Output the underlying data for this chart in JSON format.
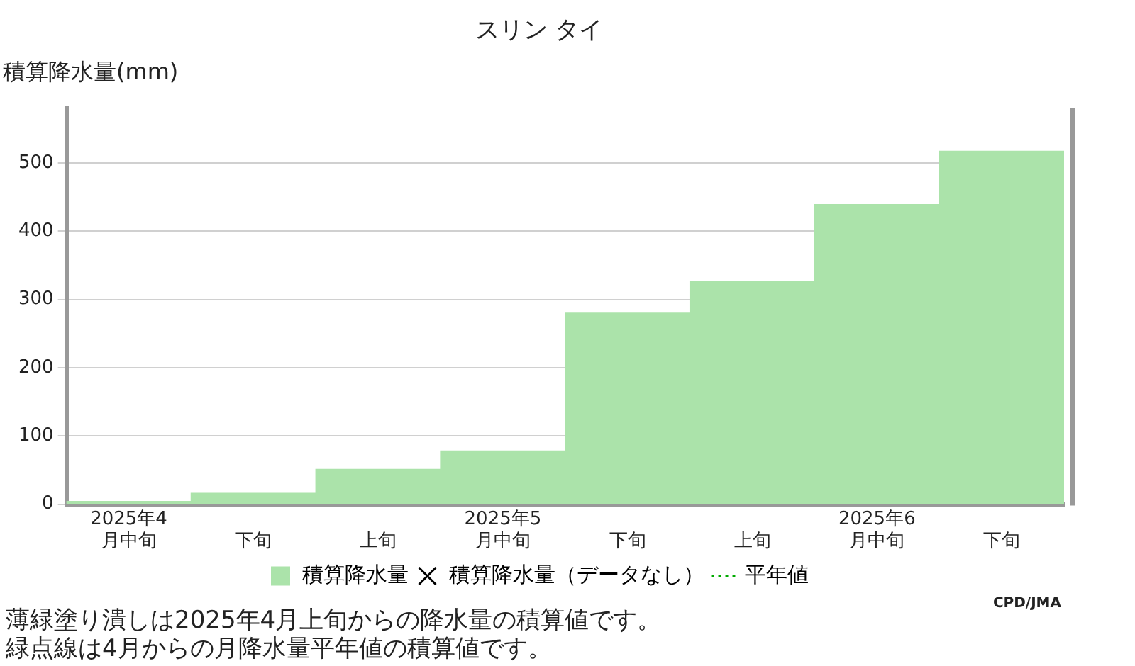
{
  "chart_data": {
    "type": "bar",
    "title": "スリン タイ",
    "ylabel": "積算降水量(mm)",
    "categories": [
      "2025年4月中旬",
      "下旬",
      "上旬",
      "2025年5月中旬",
      "下旬",
      "上旬",
      "2025年6月中旬",
      "下旬"
    ],
    "series": [
      {
        "name": "積算降水量",
        "color": "#abe3aa",
        "values": [
          4,
          16,
          51,
          78,
          280,
          327,
          439,
          517
        ]
      },
      {
        "name": "積算降水量（データなし）",
        "type": "scatter",
        "marker": "cross",
        "color": "#000000",
        "values": [
          null,
          null,
          null,
          null,
          null,
          null,
          null,
          null
        ]
      },
      {
        "name": "平年値",
        "type": "line",
        "line_style": "dotted",
        "color": "#00aa00",
        "values": [
          null,
          null,
          null,
          null,
          null,
          null,
          null,
          null
        ]
      }
    ],
    "ylim": [
      0,
      580
    ],
    "yticks": [
      0,
      100,
      200,
      300,
      400,
      500
    ],
    "grid": "y",
    "legend": "bottom",
    "annotations": [
      "CPD/JMA",
      "薄緑塗り潰しは2025年4月上旬からの降水量の積算値です。",
      "緑点線は4月からの月降水量平年値の積算値です。"
    ]
  }
}
